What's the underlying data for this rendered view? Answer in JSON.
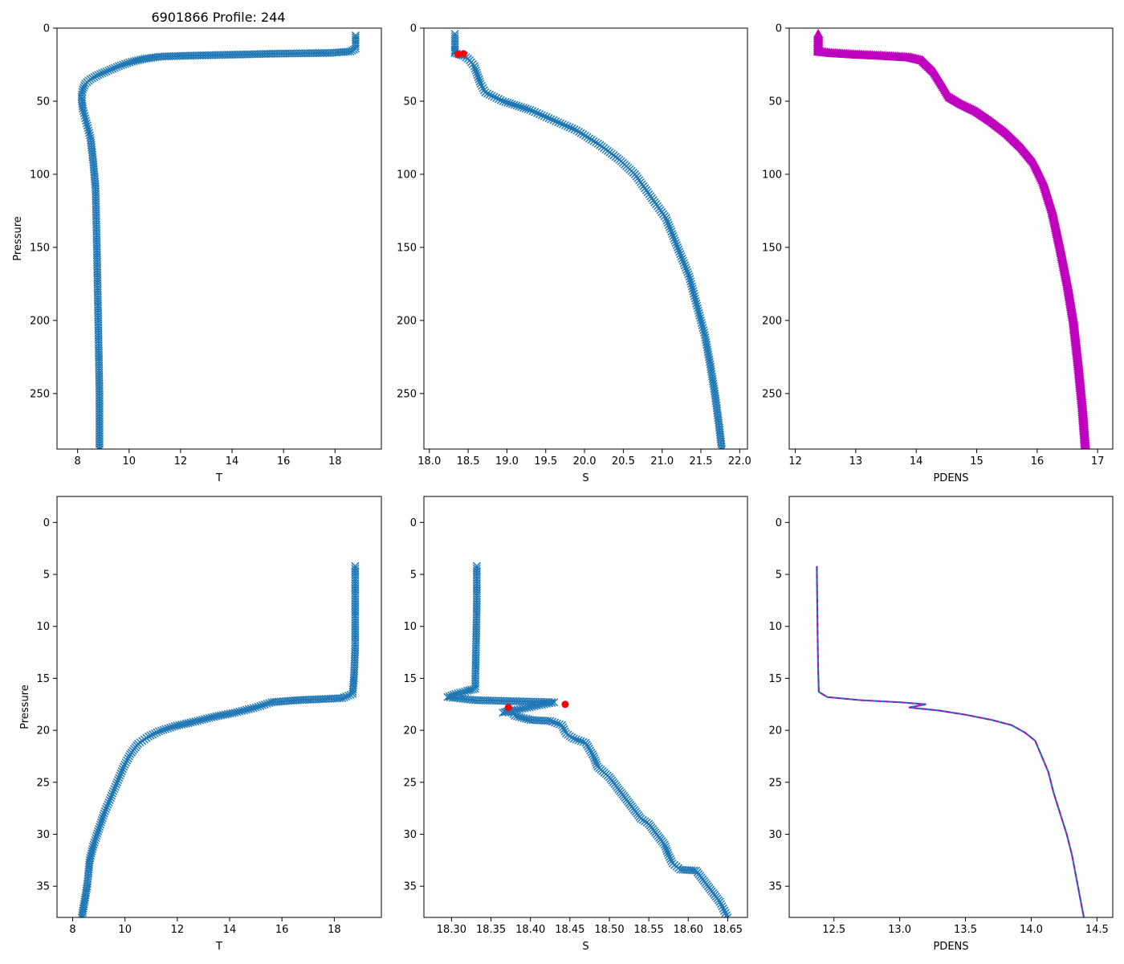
{
  "figure": {
    "title": "6901866 Profile: 244",
    "colors": {
      "series": "#1f77b4",
      "magenta": "#bf00bf",
      "flag": "#ff0000",
      "axis": "#000000"
    }
  },
  "chart_data": [
    {
      "id": "top-T",
      "type": "line",
      "marker": "x",
      "color": "#1f77b4",
      "xlabel": "T",
      "ylabel": "Pressure",
      "xlim": [
        7.2,
        19.8
      ],
      "ylim": [
        288,
        0
      ],
      "xticks": [
        8,
        10,
        12,
        14,
        16,
        18
      ],
      "yticks": [
        0,
        50,
        100,
        150,
        200,
        250
      ],
      "points": [
        [
          18.8,
          5
        ],
        [
          18.8,
          14
        ],
        [
          18.6,
          16
        ],
        [
          17.8,
          17
        ],
        [
          15.6,
          17.5
        ],
        [
          14.5,
          18
        ],
        [
          13.2,
          18.5
        ],
        [
          12.0,
          19
        ],
        [
          11.2,
          19.5
        ],
        [
          10.6,
          21
        ],
        [
          10.1,
          23
        ],
        [
          9.6,
          26
        ],
        [
          9.2,
          29
        ],
        [
          8.8,
          32
        ],
        [
          8.5,
          35
        ],
        [
          8.3,
          38
        ],
        [
          8.2,
          42
        ],
        [
          8.15,
          47
        ],
        [
          8.2,
          55
        ],
        [
          8.35,
          65
        ],
        [
          8.5,
          75
        ],
        [
          8.6,
          90
        ],
        [
          8.7,
          110
        ],
        [
          8.75,
          150
        ],
        [
          8.8,
          200
        ],
        [
          8.85,
          250
        ],
        [
          8.85,
          288
        ]
      ],
      "flags": []
    },
    {
      "id": "top-S",
      "type": "line",
      "marker": "x",
      "color": "#1f77b4",
      "xlabel": "S",
      "ylabel": "",
      "xlim": [
        17.93,
        22.1
      ],
      "ylim": [
        288,
        0
      ],
      "xticks": [
        18.0,
        18.5,
        19.0,
        19.5,
        20.0,
        20.5,
        21.0,
        21.5,
        22.0
      ],
      "yticks": [
        0,
        50,
        100,
        150,
        200,
        250
      ],
      "tick_labels": [
        "18.0",
        "18.5",
        "19.0",
        "19.5",
        "20.0",
        "20.5",
        "21.0",
        "21.5",
        "22.0"
      ],
      "points": [
        [
          18.33,
          4
        ],
        [
          18.33,
          15
        ],
        [
          18.33,
          17
        ],
        [
          18.38,
          18
        ],
        [
          18.45,
          19
        ],
        [
          18.52,
          22
        ],
        [
          18.58,
          26
        ],
        [
          18.62,
          32
        ],
        [
          18.66,
          38
        ],
        [
          18.72,
          44
        ],
        [
          18.95,
          50
        ],
        [
          19.3,
          56
        ],
        [
          19.6,
          63
        ],
        [
          19.9,
          70
        ],
        [
          20.2,
          80
        ],
        [
          20.45,
          90
        ],
        [
          20.65,
          100
        ],
        [
          20.85,
          115
        ],
        [
          21.05,
          130
        ],
        [
          21.2,
          150
        ],
        [
          21.35,
          170
        ],
        [
          21.45,
          190
        ],
        [
          21.55,
          210
        ],
        [
          21.62,
          230
        ],
        [
          21.68,
          250
        ],
        [
          21.73,
          270
        ],
        [
          21.77,
          288
        ]
      ],
      "flags": [
        [
          18.44,
          17.5
        ],
        [
          18.37,
          17.9
        ]
      ]
    },
    {
      "id": "top-PDENS",
      "type": "line",
      "marker": "triangle",
      "color": "#bf00bf",
      "xlabel": "PDENS",
      "ylabel": "",
      "xlim": [
        11.9,
        17.25
      ],
      "ylim": [
        288,
        0
      ],
      "xticks": [
        12,
        13,
        14,
        15,
        16,
        17
      ],
      "yticks": [
        0,
        50,
        100,
        150,
        200,
        250
      ],
      "points": [
        [
          12.38,
          4
        ],
        [
          12.38,
          16
        ],
        [
          12.6,
          17
        ],
        [
          13.0,
          18
        ],
        [
          13.5,
          19
        ],
        [
          13.9,
          20
        ],
        [
          14.1,
          22
        ],
        [
          14.3,
          30
        ],
        [
          14.45,
          40
        ],
        [
          14.55,
          47
        ],
        [
          14.75,
          52
        ],
        [
          15.0,
          57
        ],
        [
          15.25,
          64
        ],
        [
          15.5,
          72
        ],
        [
          15.75,
          82
        ],
        [
          15.95,
          92
        ],
        [
          16.1,
          105
        ],
        [
          16.25,
          125
        ],
        [
          16.38,
          150
        ],
        [
          16.5,
          175
        ],
        [
          16.6,
          200
        ],
        [
          16.68,
          230
        ],
        [
          16.75,
          260
        ],
        [
          16.8,
          288
        ]
      ],
      "flags": []
    },
    {
      "id": "bottom-T",
      "type": "line",
      "marker": "x",
      "color": "#1f77b4",
      "xlabel": "T",
      "ylabel": "Pressure",
      "xlim": [
        7.4,
        19.8
      ],
      "ylim": [
        38,
        -2.5
      ],
      "xticks": [
        8,
        10,
        12,
        14,
        16,
        18
      ],
      "yticks": [
        0,
        5,
        10,
        15,
        20,
        25,
        30,
        35
      ],
      "points": [
        [
          18.8,
          4.2
        ],
        [
          18.8,
          8
        ],
        [
          18.8,
          12
        ],
        [
          18.75,
          15
        ],
        [
          18.7,
          16.5
        ],
        [
          18.3,
          16.9
        ],
        [
          17.5,
          17
        ],
        [
          16.6,
          17.1
        ],
        [
          15.6,
          17.3
        ],
        [
          15.0,
          17.8
        ],
        [
          14.2,
          18.3
        ],
        [
          13.4,
          18.7
        ],
        [
          12.6,
          19.2
        ],
        [
          11.9,
          19.6
        ],
        [
          11.3,
          20.1
        ],
        [
          10.9,
          20.6
        ],
        [
          10.5,
          21.3
        ],
        [
          10.2,
          22.3
        ],
        [
          9.95,
          23.5
        ],
        [
          9.7,
          25
        ],
        [
          9.45,
          26.5
        ],
        [
          9.2,
          28
        ],
        [
          9.0,
          29.5
        ],
        [
          8.8,
          31
        ],
        [
          8.65,
          32.5
        ],
        [
          8.6,
          33.8
        ],
        [
          8.55,
          35
        ],
        [
          8.45,
          36.5
        ],
        [
          8.35,
          38
        ]
      ],
      "flags": []
    },
    {
      "id": "bottom-S",
      "type": "line",
      "marker": "x",
      "color": "#1f77b4",
      "xlabel": "S",
      "ylabel": "",
      "xlim": [
        18.265,
        18.675
      ],
      "ylim": [
        38,
        -2.5
      ],
      "xticks": [
        18.3,
        18.35,
        18.4,
        18.45,
        18.5,
        18.55,
        18.6,
        18.65
      ],
      "yticks": [
        0,
        5,
        10,
        15,
        20,
        25,
        30,
        35
      ],
      "tick_labels": [
        "18.30",
        "18.35",
        "18.40",
        "18.45",
        "18.50",
        "18.55",
        "18.60",
        "18.65"
      ],
      "points": [
        [
          18.332,
          4.2
        ],
        [
          18.332,
          8
        ],
        [
          18.331,
          12
        ],
        [
          18.33,
          16
        ],
        [
          18.32,
          16.2
        ],
        [
          18.305,
          16.5
        ],
        [
          18.295,
          16.8
        ],
        [
          18.33,
          17.1
        ],
        [
          18.43,
          17.3
        ],
        [
          18.365,
          18.3
        ],
        [
          18.375,
          18.1
        ],
        [
          18.38,
          18.6
        ],
        [
          18.4,
          19
        ],
        [
          18.425,
          19.1
        ],
        [
          18.44,
          19.5
        ],
        [
          18.445,
          20.3
        ],
        [
          18.455,
          20.8
        ],
        [
          18.47,
          21.2
        ],
        [
          18.48,
          22.5
        ],
        [
          18.485,
          23.5
        ],
        [
          18.5,
          24.5
        ],
        [
          18.51,
          25.5
        ],
        [
          18.52,
          26.5
        ],
        [
          18.53,
          27.5
        ],
        [
          18.54,
          28.5
        ],
        [
          18.55,
          29
        ],
        [
          18.56,
          30
        ],
        [
          18.57,
          31
        ],
        [
          18.575,
          32
        ],
        [
          18.58,
          32.8
        ],
        [
          18.59,
          33.4
        ],
        [
          18.61,
          33.5
        ],
        [
          18.62,
          34.5
        ],
        [
          18.63,
          35.5
        ],
        [
          18.64,
          36.5
        ],
        [
          18.65,
          38
        ]
      ],
      "flags": [
        [
          18.444,
          17.5
        ],
        [
          18.372,
          17.8
        ]
      ]
    },
    {
      "id": "bottom-PDENS",
      "type": "line",
      "marker": "dash",
      "color": "#bf00bf",
      "under_color": "#1f77b4",
      "xlabel": "PDENS",
      "ylabel": "",
      "xlim": [
        12.16,
        14.62
      ],
      "ylim": [
        38,
        -2.5
      ],
      "xticks": [
        12.5,
        13.0,
        13.5,
        14.0,
        14.5
      ],
      "yticks": [
        0,
        5,
        10,
        15,
        20,
        25,
        30,
        35
      ],
      "tick_labels": [
        "12.5",
        "13.0",
        "13.5",
        "14.0",
        "14.5"
      ],
      "points": [
        [
          12.37,
          4.2
        ],
        [
          12.375,
          10
        ],
        [
          12.38,
          14
        ],
        [
          12.385,
          16.3
        ],
        [
          12.45,
          16.8
        ],
        [
          12.7,
          17.1
        ],
        [
          13.0,
          17.3
        ],
        [
          13.2,
          17.5
        ],
        [
          13.07,
          17.8
        ],
        [
          13.3,
          18.1
        ],
        [
          13.5,
          18.5
        ],
        [
          13.7,
          19
        ],
        [
          13.85,
          19.5
        ],
        [
          13.95,
          20.2
        ],
        [
          14.03,
          21
        ],
        [
          14.08,
          22.5
        ],
        [
          14.13,
          24
        ],
        [
          14.17,
          26
        ],
        [
          14.22,
          28
        ],
        [
          14.27,
          30
        ],
        [
          14.31,
          32
        ],
        [
          14.34,
          34
        ],
        [
          14.37,
          36
        ],
        [
          14.4,
          38
        ]
      ],
      "flags": []
    }
  ]
}
